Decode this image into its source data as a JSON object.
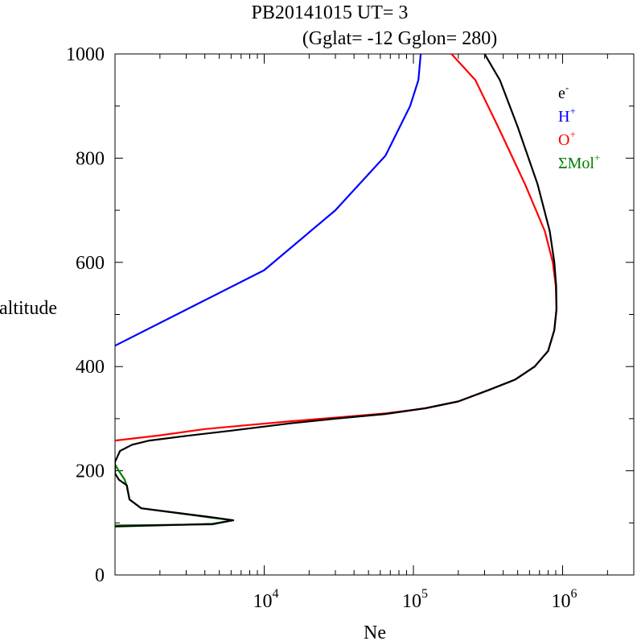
{
  "title": {
    "line1": "PB20141015   UT=  3",
    "line2": "(Gglat= -12   Gglon=  280)"
  },
  "chart_data": {
    "type": "line",
    "xlabel": "Ne",
    "ylabel": "altitude",
    "x_scale": "log",
    "xlim": [
      1000,
      3000000
    ],
    "ylim": [
      0,
      1000
    ],
    "x_ticks": [
      {
        "value": 10000,
        "base": "10",
        "exp": "4"
      },
      {
        "value": 100000,
        "base": "10",
        "exp": "5"
      },
      {
        "value": 1000000,
        "base": "10",
        "exp": "6"
      }
    ],
    "y_ticks": [
      0,
      200,
      400,
      600,
      800,
      1000
    ],
    "legend": {
      "position": "top-right",
      "entries": [
        {
          "key": "electrons",
          "base": "e",
          "sup": "-",
          "color": "#000000"
        },
        {
          "key": "hydrogen",
          "base": "H",
          "sup": "+",
          "color": "#0000ff"
        },
        {
          "key": "oxygen",
          "base": "O",
          "sup": "+",
          "color": "#ff0000"
        },
        {
          "key": "molecular",
          "base": "ΣMol",
          "sup": "+",
          "color": "#008000"
        }
      ]
    },
    "series": [
      {
        "key": "hydrogen",
        "color": "#0000ff",
        "points": [
          [
            1000,
            440
          ],
          [
            10000,
            585
          ],
          [
            30000,
            700
          ],
          [
            65000,
            805
          ],
          [
            95000,
            900
          ],
          [
            108000,
            950
          ],
          [
            112000,
            1000
          ]
        ]
      },
      {
        "key": "oxygen",
        "color": "#ff0000",
        "points": [
          [
            1000,
            258
          ],
          [
            2000,
            268
          ],
          [
            4000,
            280
          ],
          [
            8000,
            288
          ],
          [
            15000,
            295
          ],
          [
            30000,
            302
          ],
          [
            65000,
            310
          ],
          [
            120000,
            320
          ],
          [
            200000,
            333
          ],
          [
            320000,
            355
          ],
          [
            480000,
            375
          ],
          [
            650000,
            400
          ],
          [
            800000,
            430
          ],
          [
            880000,
            470
          ],
          [
            910000,
            510
          ],
          [
            900000,
            555
          ],
          [
            860000,
            600
          ],
          [
            760000,
            660
          ],
          [
            560000,
            750
          ],
          [
            370000,
            860
          ],
          [
            260000,
            950
          ],
          [
            180000,
            1000
          ]
        ]
      },
      {
        "key": "molecular",
        "color": "#008000",
        "points": [
          [
            1000,
            95
          ],
          [
            4500,
            97
          ],
          [
            6200,
            105
          ],
          [
            4400,
            110
          ],
          [
            1500,
            128
          ],
          [
            1250,
            145
          ],
          [
            1200,
            170
          ],
          [
            1160,
            183
          ],
          [
            1070,
            198
          ],
          [
            1000,
            212
          ]
        ]
      },
      {
        "key": "electrons",
        "color": "#000000",
        "points": [
          [
            1000,
            93
          ],
          [
            4500,
            98
          ],
          [
            6200,
            105
          ],
          [
            4400,
            111
          ],
          [
            1500,
            128
          ],
          [
            1250,
            145
          ],
          [
            1200,
            172
          ],
          [
            1060,
            183
          ],
          [
            1000,
            195
          ],
          [
            1000,
            217
          ],
          [
            1080,
            238
          ],
          [
            1300,
            250
          ],
          [
            1700,
            258
          ],
          [
            3000,
            267
          ],
          [
            6000,
            277
          ],
          [
            15000,
            291
          ],
          [
            30000,
            300
          ],
          [
            65000,
            309
          ],
          [
            120000,
            320
          ],
          [
            200000,
            333
          ],
          [
            320000,
            355
          ],
          [
            480000,
            375
          ],
          [
            650000,
            400
          ],
          [
            800000,
            430
          ],
          [
            880000,
            470
          ],
          [
            910000,
            510
          ],
          [
            905000,
            555
          ],
          [
            880000,
            600
          ],
          [
            820000,
            660
          ],
          [
            680000,
            750
          ],
          [
            500000,
            860
          ],
          [
            380000,
            950
          ],
          [
            300000,
            1000
          ]
        ]
      }
    ]
  }
}
